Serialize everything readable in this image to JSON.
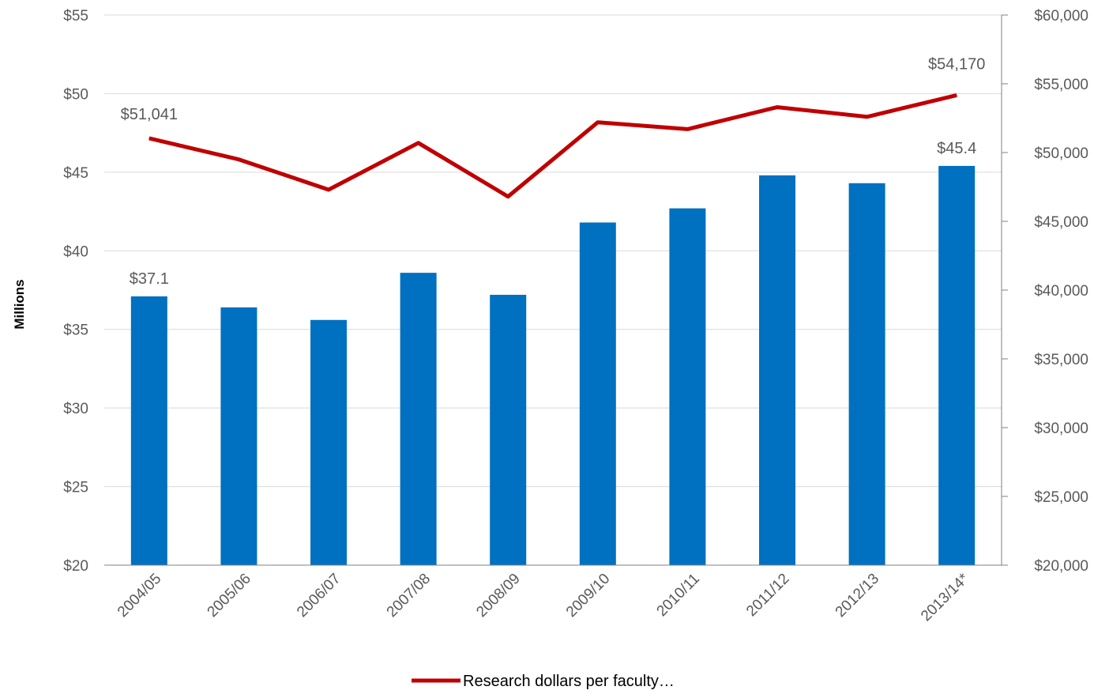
{
  "chart_data": {
    "type": "bar+line",
    "categories": [
      "2004/05",
      "2005/06",
      "2006/07",
      "2007/08",
      "2008/09",
      "2009/10",
      "2010/11",
      "2011/12",
      "2012/13",
      "2013/14*"
    ],
    "series": [
      {
        "type": "bar",
        "axis": "left",
        "values": [
          37.1,
          36.4,
          35.6,
          38.6,
          37.2,
          41.8,
          42.7,
          44.8,
          44.3,
          45.4
        ],
        "color": "#0070C0"
      },
      {
        "type": "line",
        "axis": "right",
        "name": "Research dollars per faculty…",
        "values": [
          51041,
          49500,
          47300,
          50700,
          46800,
          52200,
          51700,
          53300,
          52600,
          54170
        ],
        "color": "#C00000"
      }
    ],
    "ylabel": "Millions",
    "ylim": [
      20,
      55
    ],
    "y_ticks": [
      "$20",
      "$25",
      "$30",
      "$35",
      "$40",
      "$45",
      "$50",
      "$55"
    ],
    "y2lim": [
      20000,
      60000
    ],
    "y2_ticks": [
      "$20,000",
      "$25,000",
      "$30,000",
      "$35,000",
      "$40,000",
      "$45,000",
      "$50,000",
      "$55,000",
      "$60,000"
    ],
    "data_labels": {
      "bar_first": "$37.1",
      "bar_last": "$45.4",
      "line_first": "$51,041",
      "line_last": "$54,170"
    },
    "grid": true,
    "legend_position": "bottom"
  },
  "colors": {
    "bar": "#0070C0",
    "line": "#C00000",
    "grid": "#D9D9D9",
    "axis": "#808080"
  }
}
